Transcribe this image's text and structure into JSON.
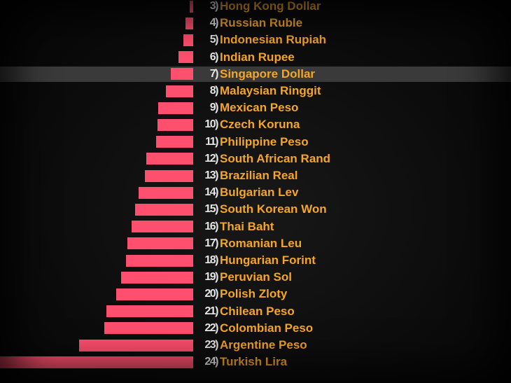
{
  "chart_data": {
    "type": "bar",
    "orientation": "horizontal",
    "ranks": [
      "3)",
      "4)",
      "5)",
      "6)",
      "7)",
      "8)",
      "9)",
      "10)",
      "11)",
      "12)",
      "13)",
      "14)",
      "15)",
      "16)",
      "17)",
      "18)",
      "19)",
      "20)",
      "21)",
      "22)",
      "23)",
      "24)"
    ],
    "categories": [
      "Hong Kong Dollar",
      "Russian Ruble",
      "Indonesian Rupiah",
      "Indian Rupee",
      "Singapore Dollar",
      "Malaysian Ringgit",
      "Mexican Peso",
      "Czech Koruna",
      "Philippine Peso",
      "South African Rand",
      "Brazilian Real",
      "Bulgarian Lev",
      "South Korean Won",
      "Thai Baht",
      "Romanian Leu",
      "Hungarian Forint",
      "Peruvian Sol",
      "Polish Zloty",
      "Chilean Peso",
      "Colombian Peso",
      "Argentine Peso",
      "Turkish Lira"
    ],
    "values": [
      1.5,
      3,
      4,
      6,
      9,
      11,
      14,
      14.5,
      15,
      19,
      19.5,
      22,
      23.5,
      25,
      26.5,
      27,
      29,
      31,
      35,
      36,
      46,
      78
    ],
    "highlighted_category": "Singapore Dollar",
    "xlim": [
      0,
      78
    ],
    "grid": false,
    "legend": "none"
  },
  "colors": {
    "bar": "#ff4f6e",
    "label": "#f5a623",
    "rank": "#e6e6e6",
    "background": "#0c0c0c",
    "highlight": "#3a3a3a"
  }
}
